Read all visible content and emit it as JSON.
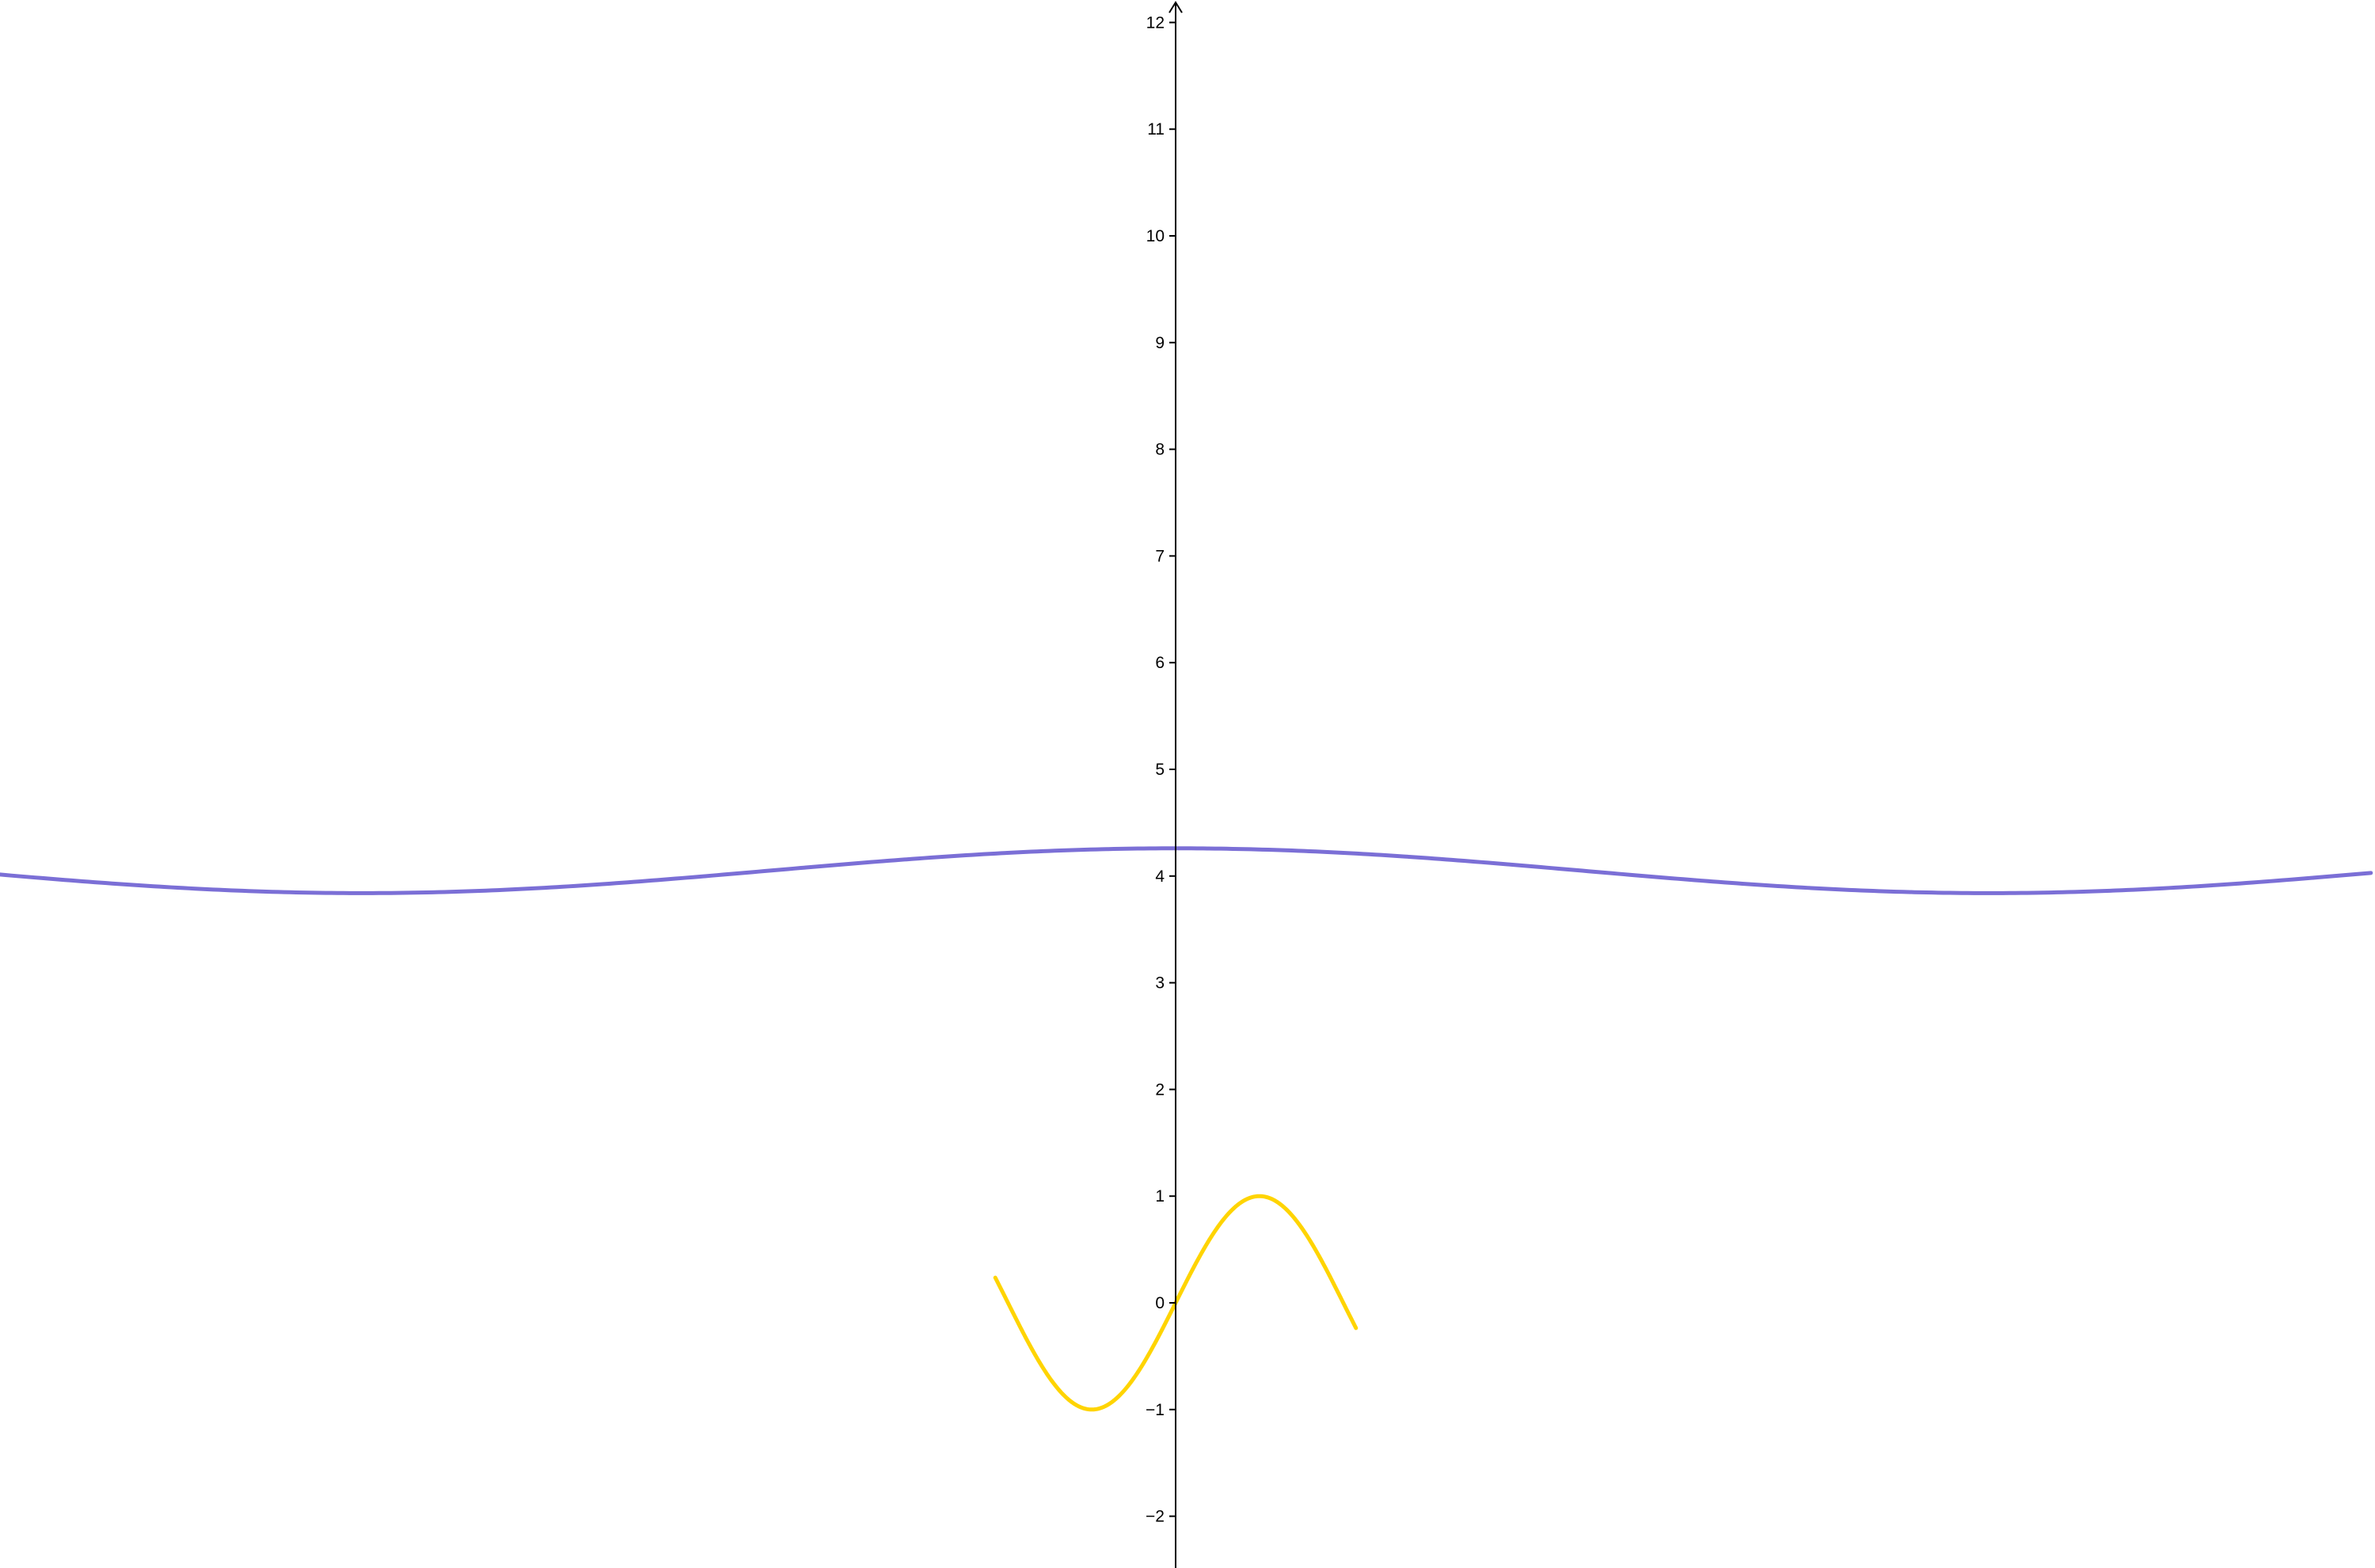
{
  "chart_data": {
    "type": "line",
    "title": "",
    "xlabel": "",
    "ylabel": "",
    "grid": false,
    "legend": "none",
    "axes": {
      "x_axis_visible": false,
      "y_axis_arrow": true,
      "ylim": [
        -2.47,
        12.2
      ],
      "xlim": [
        -11.02,
        11.2
      ]
    },
    "y_ticks": [
      {
        "value": -2,
        "label": "−2"
      },
      {
        "value": -1,
        "label": "−1"
      },
      {
        "value": 0,
        "label": "0"
      },
      {
        "value": 1,
        "label": "1"
      },
      {
        "value": 2,
        "label": "2"
      },
      {
        "value": 3,
        "label": "3"
      },
      {
        "value": 4,
        "label": "4"
      },
      {
        "value": 5,
        "label": "5"
      },
      {
        "value": 6,
        "label": "6"
      },
      {
        "value": 7,
        "label": "7"
      },
      {
        "value": 8,
        "label": "8"
      },
      {
        "value": 9,
        "label": "9"
      },
      {
        "value": 10,
        "label": "10"
      },
      {
        "value": 11,
        "label": "11"
      },
      {
        "value": 12,
        "label": "12"
      }
    ],
    "series": [
      {
        "id": "purple-curve",
        "color": "#7b6fd6",
        "formula": "4.05 + 0.21*cos(x*0.412)",
        "x_range": [
          -11.02,
          11.2
        ],
        "samples": 400
      },
      {
        "id": "yellow-curve",
        "color": "#ffd400",
        "formula": "sin(2x)",
        "x_range": [
          -1.69,
          1.69
        ],
        "samples": 300
      }
    ]
  }
}
